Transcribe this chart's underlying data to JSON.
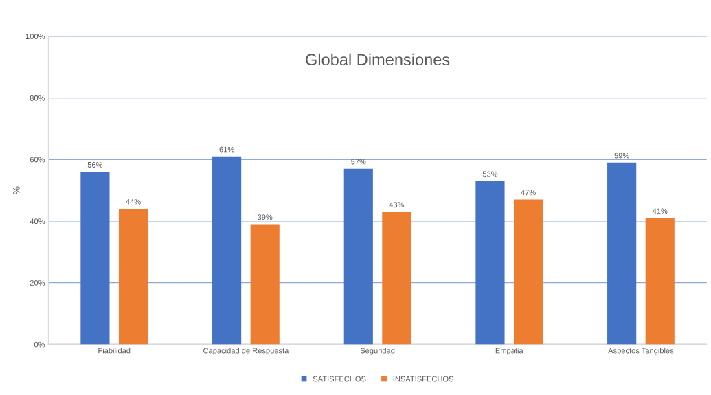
{
  "chart_data": {
    "type": "bar",
    "title": "Global Dimensiones",
    "ylabel": "%",
    "categories": [
      "Fiabilidad",
      "Capacidad de Respuesta",
      "Seguridad",
      "Empatia",
      "Aspectos Tangibles"
    ],
    "series": [
      {
        "name": "SATISFECHOS",
        "color": "#4472c4",
        "values": [
          56,
          61,
          57,
          53,
          59
        ],
        "value_labels": [
          "56%",
          "61%",
          "57%",
          "53%",
          "59%"
        ]
      },
      {
        "name": "INSATISFECHOS",
        "color": "#ed7d31",
        "values": [
          44,
          39,
          43,
          47,
          41
        ],
        "value_labels": [
          "44%",
          "39%",
          "43%",
          "47%",
          "41%"
        ]
      }
    ],
    "ylim": [
      0,
      100
    ],
    "yticks": [
      {
        "value": 0,
        "label": "0%"
      },
      {
        "value": 20,
        "label": "20%"
      },
      {
        "value": 40,
        "label": "40%"
      },
      {
        "value": 60,
        "label": "60%"
      },
      {
        "value": 80,
        "label": "80%"
      },
      {
        "value": 100,
        "label": "100%"
      }
    ],
    "grid": "y",
    "legend": "bottom"
  }
}
